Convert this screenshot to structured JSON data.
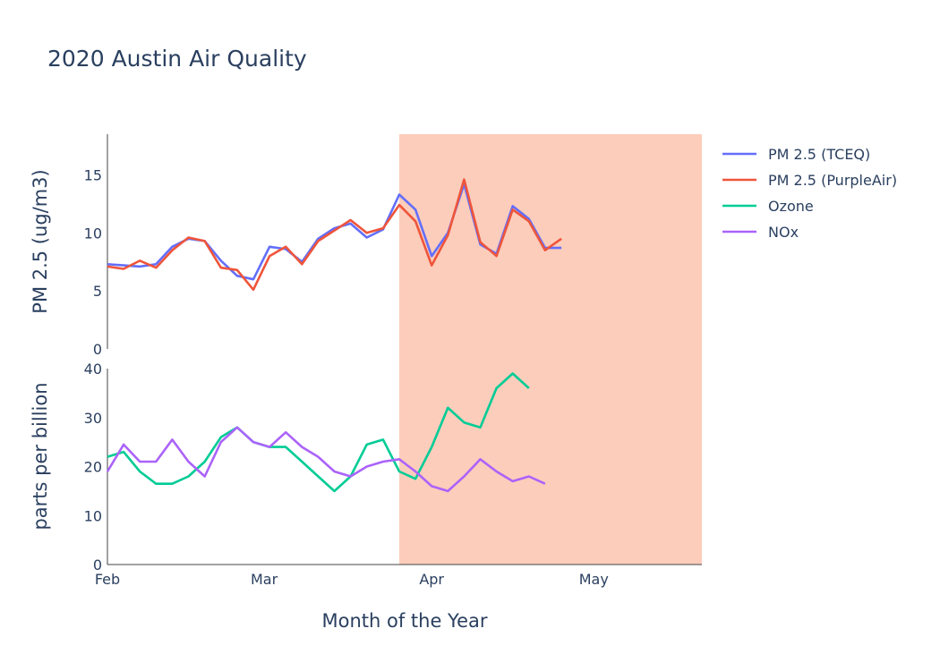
{
  "chart_data": {
    "type": "line",
    "title": "2020 Austin Air Quality",
    "xlabel": "Month of the Year",
    "x_ticks": [
      "Feb",
      "Mar",
      "Apr",
      "May"
    ],
    "xlim": [
      "2020-02-01",
      "2020-05-21"
    ],
    "x": [
      "2020-02-01",
      "2020-02-04",
      "2020-02-07",
      "2020-02-10",
      "2020-02-13",
      "2020-02-16",
      "2020-02-19",
      "2020-02-22",
      "2020-02-25",
      "2020-02-28",
      "2020-03-02",
      "2020-03-05",
      "2020-03-08",
      "2020-03-11",
      "2020-03-14",
      "2020-03-17",
      "2020-03-20",
      "2020-03-23",
      "2020-03-26",
      "2020-03-29",
      "2020-04-01",
      "2020-04-04",
      "2020-04-07",
      "2020-04-10",
      "2020-04-13",
      "2020-04-16",
      "2020-04-19",
      "2020-04-22",
      "2020-04-25",
      "2020-04-28",
      "2020-05-01"
    ],
    "shaded_region": {
      "x0": "2020-03-26",
      "x1": "2020-05-21",
      "color": "#fccdbb"
    },
    "panels": [
      {
        "ylabel": "PM 2.5 (ug/m3)",
        "ylim": [
          0,
          18.5
        ],
        "y_ticks": [
          0,
          5,
          10,
          15
        ],
        "series": [
          {
            "name": "PM 2.5 (TCEQ)",
            "color": "#636efa",
            "values": [
              7.3,
              7.2,
              7.1,
              7.3,
              8.8,
              9.5,
              9.3,
              7.6,
              6.3,
              6.0,
              8.8,
              8.6,
              7.5,
              9.5,
              10.4,
              10.8,
              9.6,
              10.3,
              13.3,
              12.0,
              8.0,
              10.0,
              14.2,
              9.0,
              8.2,
              12.3,
              11.2,
              8.7,
              8.7,
              null,
              null
            ]
          },
          {
            "name": "PM 2.5 (PurpleAir)",
            "color": "#ef553b",
            "values": [
              7.1,
              6.9,
              7.6,
              7.0,
              8.5,
              9.6,
              9.3,
              7.0,
              6.8,
              5.1,
              8.0,
              8.8,
              7.3,
              9.3,
              10.2,
              11.1,
              10.0,
              10.4,
              12.4,
              11.0,
              7.2,
              9.8,
              14.6,
              9.2,
              8.0,
              12.0,
              11.0,
              8.5,
              9.5,
              null,
              null
            ]
          }
        ]
      },
      {
        "ylabel": "parts per billion",
        "ylim": [
          0,
          40
        ],
        "y_ticks": [
          0,
          10,
          20,
          30,
          40
        ],
        "series": [
          {
            "name": "Ozone",
            "color": "#00cc96",
            "values": [
              22,
              23,
              19,
              16.5,
              16.5,
              18,
              21,
              26,
              28,
              25,
              24,
              24,
              21,
              18,
              15,
              18,
              24.5,
              25.5,
              19,
              17.5,
              24,
              32,
              29,
              28,
              36,
              39,
              36,
              null,
              null,
              null,
              null
            ]
          },
          {
            "name": "NOx",
            "color": "#ab63fa",
            "values": [
              19,
              24.5,
              21,
              21,
              25.5,
              21,
              18,
              25,
              28,
              25,
              24,
              27,
              24,
              22,
              19,
              18,
              20,
              21,
              21.5,
              19,
              16,
              15,
              18,
              21.5,
              19,
              17,
              18,
              16.5,
              null,
              null,
              null
            ]
          }
        ]
      }
    ],
    "legend_position": "right"
  }
}
